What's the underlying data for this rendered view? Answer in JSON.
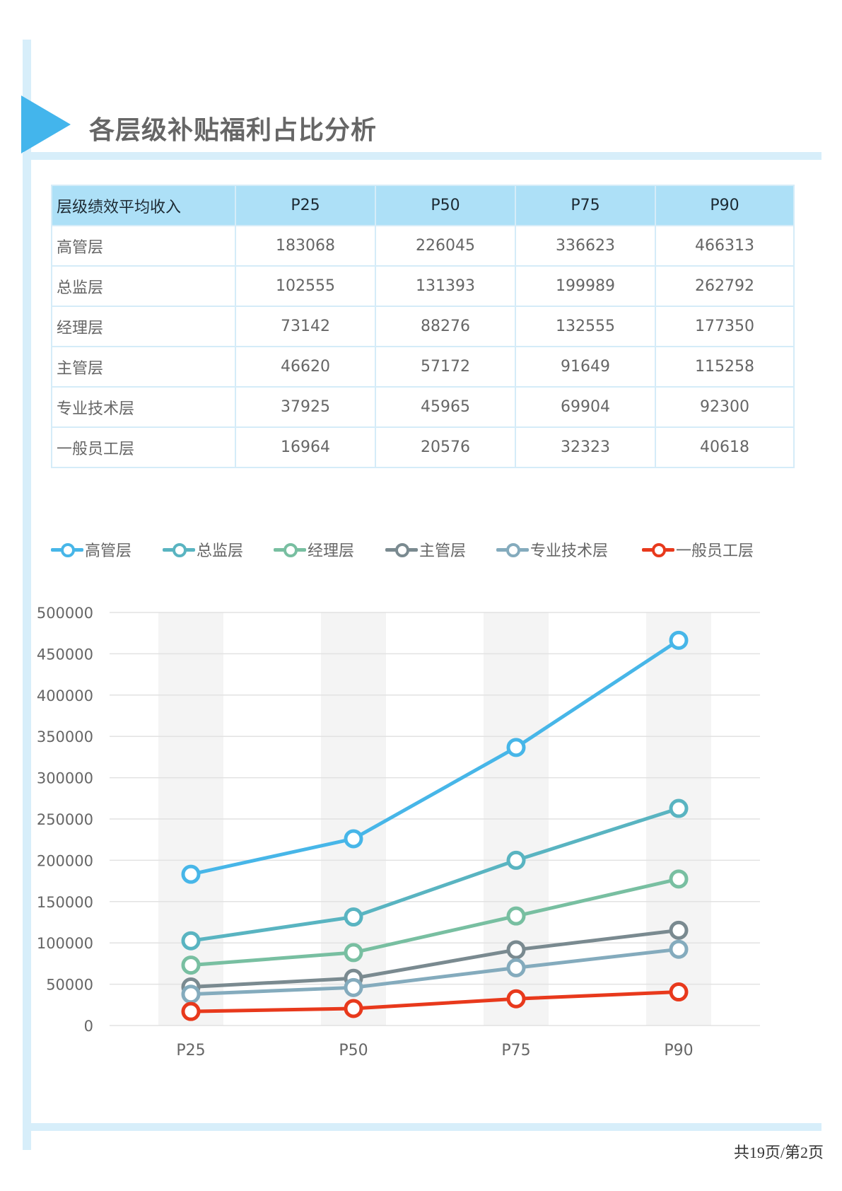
{
  "title": "各层级补贴福利占比分析",
  "table": {
    "header": [
      "层级绩效平均收入",
      "P25",
      "P50",
      "P75",
      "P90"
    ],
    "rows": [
      [
        "高管层",
        "183068",
        "226045",
        "336623",
        "466313"
      ],
      [
        "总监层",
        "102555",
        "131393",
        "199989",
        "262792"
      ],
      [
        "经理层",
        "73142",
        "88276",
        "132555",
        "177350"
      ],
      [
        "主管层",
        "46620",
        "57172",
        "91649",
        "115258"
      ],
      [
        "专业技术层",
        "37925",
        "45965",
        "69904",
        "92300"
      ],
      [
        "一般员工层",
        "16964",
        "20576",
        "32323",
        "40618"
      ]
    ]
  },
  "chart_data": {
    "type": "line",
    "categories": [
      "P25",
      "P50",
      "P75",
      "P90"
    ],
    "ylim": [
      0,
      500000
    ],
    "yticks": [
      0,
      50000,
      100000,
      150000,
      200000,
      250000,
      300000,
      350000,
      400000,
      450000,
      500000
    ],
    "ytick_labels": [
      "0",
      "50000",
      "100000",
      "150000",
      "200000",
      "250000",
      "300000",
      "350000",
      "400000",
      "450000",
      "500000"
    ],
    "grid": true,
    "legend_position": "top",
    "series": [
      {
        "name": "高管层",
        "values": [
          183068,
          226045,
          336623,
          466313
        ],
        "color": "#47b6e8"
      },
      {
        "name": "总监层",
        "values": [
          102555,
          131393,
          199989,
          262792
        ],
        "color": "#59b4c1"
      },
      {
        "name": "经理层",
        "values": [
          73142,
          88276,
          132555,
          177350
        ],
        "color": "#78bfa1"
      },
      {
        "name": "主管层",
        "values": [
          46620,
          57172,
          91649,
          115258
        ],
        "color": "#7a8a90"
      },
      {
        "name": "专业技术层",
        "values": [
          37925,
          45965,
          69904,
          92300
        ],
        "color": "#84abbd"
      },
      {
        "name": "一般员工层",
        "values": [
          16964,
          20576,
          32323,
          40618
        ],
        "color": "#e8391c"
      }
    ]
  },
  "footer": "共19页/第2页"
}
